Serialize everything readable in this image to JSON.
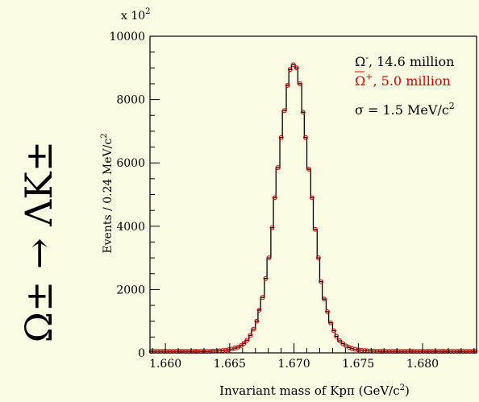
{
  "side_title": "Ω± → ΛK±",
  "legend": {
    "line1_main": "Ω",
    "line1_sup": "-",
    "line1_rest": ", 14.6 million",
    "line2_main": "Ω",
    "line2_sup": "+",
    "line2_rest": ",  5.0 million",
    "line3_main": "σ = 1.5 MeV/c",
    "line3_sup": "2"
  },
  "colors": {
    "background": "#fcfbe3",
    "histogram": "#000000",
    "points": "#dd0000"
  },
  "chart_data": {
    "type": "line",
    "title": "",
    "xlabel_main": "Invariant mass of Kpπ  (GeV/c",
    "xlabel_sup": "2",
    "xlabel_end": ")",
    "ylabel_main": "Events / 0.24 MeV/c",
    "ylabel_sup": "2",
    "y_multiplier_main": "x 10",
    "y_multiplier_sup": "2",
    "xlim": [
      1.6588,
      1.6842
    ],
    "ylim": [
      0,
      10000
    ],
    "x_ticks": [
      1.66,
      1.665,
      1.67,
      1.675,
      1.68
    ],
    "x_tick_labels": [
      "1.660",
      "1.665",
      "1.670",
      "1.675",
      "1.680"
    ],
    "y_ticks": [
      0,
      2000,
      4000,
      6000,
      8000,
      10000
    ],
    "y_tick_labels": [
      "0",
      "2000",
      "4000",
      "6000",
      "8000",
      "10000"
    ],
    "grid": false,
    "legend_position": "top-right",
    "series": [
      {
        "name": "Ω-, 14.6 million",
        "style": "step-histogram",
        "x": [
          1.6588,
          1.659,
          1.6593,
          1.6595,
          1.6598,
          1.66,
          1.6602,
          1.6605,
          1.6607,
          1.661,
          1.6612,
          1.6614,
          1.6617,
          1.6619,
          1.6622,
          1.6624,
          1.6626,
          1.6629,
          1.6631,
          1.6634,
          1.6636,
          1.6638,
          1.6641,
          1.6643,
          1.6646,
          1.6648,
          1.665,
          1.6653,
          1.6655,
          1.6658,
          1.666,
          1.6662,
          1.6665,
          1.6667,
          1.667,
          1.6672,
          1.6674,
          1.6677,
          1.6679,
          1.6682,
          1.6684,
          1.6686,
          1.6689,
          1.6691,
          1.6694,
          1.6696,
          1.6698,
          1.6701,
          1.6703,
          1.6706,
          1.6708,
          1.671,
          1.6713,
          1.6715,
          1.6718,
          1.672,
          1.6722,
          1.6725,
          1.6727,
          1.673,
          1.6732,
          1.6734,
          1.6737,
          1.6739,
          1.6742,
          1.6744,
          1.6746,
          1.6749,
          1.6751,
          1.6754,
          1.6756,
          1.6758,
          1.6761,
          1.6763,
          1.6766,
          1.6768,
          1.677,
          1.6773,
          1.6775,
          1.6778,
          1.678,
          1.6782,
          1.6785,
          1.6787,
          1.679,
          1.6792,
          1.6794,
          1.6797,
          1.6799,
          1.6802,
          1.6804,
          1.6806,
          1.6809,
          1.6811,
          1.6814,
          1.6816,
          1.6818,
          1.6821,
          1.6823,
          1.6826,
          1.6828,
          1.683,
          1.6833,
          1.6835,
          1.6838,
          1.684
        ],
        "values": [
          50,
          50,
          50,
          50,
          50,
          50,
          50,
          50,
          50,
          50,
          50,
          50,
          50,
          50,
          50,
          50,
          50,
          50,
          50,
          50,
          55,
          60,
          65,
          75,
          85,
          100,
          120,
          150,
          180,
          230,
          300,
          400,
          550,
          750,
          1000,
          1350,
          1750,
          2350,
          3000,
          3950,
          4900,
          5850,
          6800,
          7650,
          8450,
          8950,
          9100,
          9000,
          8500,
          7600,
          6800,
          5800,
          4900,
          3900,
          3000,
          2250,
          1700,
          1300,
          950,
          700,
          520,
          380,
          290,
          220,
          170,
          140,
          115,
          95,
          80,
          70,
          65,
          60,
          55,
          52,
          50,
          50,
          50,
          50,
          50,
          50,
          50,
          50,
          50,
          50,
          50,
          50,
          50,
          50,
          50,
          50,
          50,
          50,
          50,
          50,
          50,
          50,
          50,
          50,
          50,
          50,
          50,
          50,
          50,
          50,
          50,
          50
        ]
      },
      {
        "name": "Ω+,  5.0 million",
        "style": "open-circles",
        "x": [
          1.6588,
          1.659,
          1.6593,
          1.6595,
          1.6598,
          1.66,
          1.6602,
          1.6605,
          1.6607,
          1.661,
          1.6612,
          1.6614,
          1.6617,
          1.6619,
          1.6622,
          1.6624,
          1.6626,
          1.6629,
          1.6631,
          1.6634,
          1.6636,
          1.6638,
          1.6641,
          1.6643,
          1.6646,
          1.6648,
          1.665,
          1.6653,
          1.6655,
          1.6658,
          1.666,
          1.6662,
          1.6665,
          1.6667,
          1.667,
          1.6672,
          1.6674,
          1.6677,
          1.6679,
          1.6682,
          1.6684,
          1.6686,
          1.6689,
          1.6691,
          1.6694,
          1.6696,
          1.6698,
          1.6701,
          1.6703,
          1.6706,
          1.6708,
          1.671,
          1.6713,
          1.6715,
          1.6718,
          1.672,
          1.6722,
          1.6725,
          1.6727,
          1.673,
          1.6732,
          1.6734,
          1.6737,
          1.6739,
          1.6742,
          1.6744,
          1.6746,
          1.6749,
          1.6751,
          1.6754,
          1.6756,
          1.6758,
          1.6761,
          1.6763,
          1.6766,
          1.6768,
          1.677,
          1.6773,
          1.6775,
          1.6778,
          1.678,
          1.6782,
          1.6785,
          1.6787,
          1.679,
          1.6792,
          1.6794,
          1.6797,
          1.6799,
          1.6802,
          1.6804,
          1.6806,
          1.6809,
          1.6811,
          1.6814,
          1.6816,
          1.6818,
          1.6821,
          1.6823,
          1.6826,
          1.6828,
          1.683,
          1.6833,
          1.6835,
          1.6838,
          1.684
        ],
        "values": [
          50,
          50,
          50,
          50,
          50,
          50,
          50,
          50,
          50,
          50,
          50,
          50,
          50,
          50,
          50,
          50,
          50,
          50,
          50,
          50,
          55,
          60,
          65,
          75,
          85,
          100,
          120,
          150,
          180,
          230,
          300,
          400,
          550,
          750,
          1000,
          1350,
          1750,
          2350,
          3000,
          3950,
          4900,
          5850,
          6800,
          7650,
          8450,
          8950,
          9100,
          9000,
          8500,
          7600,
          6800,
          5800,
          4900,
          3900,
          3000,
          2250,
          1700,
          1300,
          950,
          700,
          520,
          380,
          290,
          220,
          170,
          140,
          115,
          95,
          80,
          70,
          65,
          60,
          55,
          52,
          50,
          50,
          50,
          50,
          50,
          50,
          50,
          50,
          50,
          50,
          50,
          50,
          50,
          50,
          50,
          50,
          50,
          50,
          50,
          50,
          50,
          50,
          50,
          50,
          50,
          50,
          50,
          50,
          50,
          50,
          50,
          50
        ]
      }
    ]
  }
}
